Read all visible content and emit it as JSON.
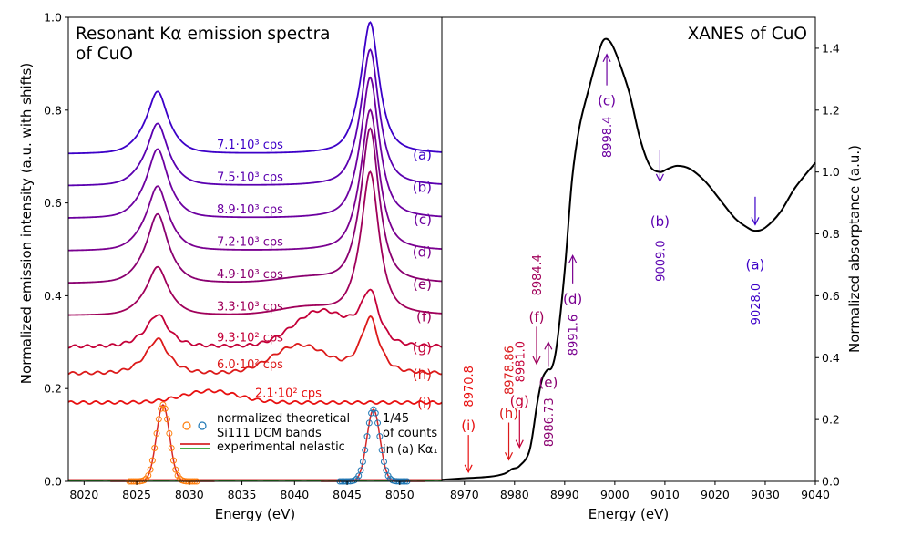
{
  "chart_data": [
    {
      "type": "line",
      "title": "Resonant Kα emission spectra\nof CuO",
      "xlabel": "Energy (eV)",
      "ylabel": "Normalized emission intensity (a.u. with shifts)",
      "xlim": [
        8018.5,
        8054.0
      ],
      "ylim": [
        0.0,
        1.0
      ],
      "xticks": [
        8020,
        8025,
        8030,
        8035,
        8040,
        8045,
        8050
      ],
      "yticks": [
        0.0,
        0.2,
        0.4,
        0.6,
        0.8,
        1.0
      ],
      "grid": false,
      "series": [
        {
          "name": "(a)",
          "color": "#3c00c8",
          "count_label": "7.1·10³ cps",
          "offset": 0.705,
          "p1": 0.135,
          "p2": 0.285,
          "sat": 0,
          "sat_pos": 8041
        },
        {
          "name": "(b)",
          "color": "#5a00b0",
          "count_label": "7.5·10³ cps",
          "offset": 0.636,
          "p1": 0.135,
          "p2": 0.295,
          "sat": 0,
          "sat_pos": 8041
        },
        {
          "name": "(c)",
          "color": "#6c00a0",
          "count_label": "8.9·10³ cps",
          "offset": 0.566,
          "p1": 0.15,
          "p2": 0.305,
          "sat": 0,
          "sat_pos": 8041
        },
        {
          "name": "(d)",
          "color": "#7a0090",
          "count_label": "7.2·10³ cps",
          "offset": 0.496,
          "p1": 0.14,
          "p2": 0.305,
          "sat": 0,
          "sat_pos": 8041
        },
        {
          "name": "(e)",
          "color": "#8a0070",
          "count_label": "4.9·10³ cps",
          "offset": 0.426,
          "p1": 0.15,
          "p2": 0.335,
          "sat": 0.01,
          "sat_pos": 8041
        },
        {
          "name": "(f)",
          "color": "#a0005a",
          "count_label": "3.3·10³ cps",
          "offset": 0.357,
          "p1": 0.105,
          "p2": 0.31,
          "sat": 0.015,
          "sat_pos": 8041
        },
        {
          "name": "(g)",
          "color": "#c40038",
          "count_label": "9.3·10²  cps",
          "offset": 0.29,
          "p1": 0.07,
          "p2": 0.11,
          "sat": 0.075,
          "sat_pos": 8042.5
        },
        {
          "name": "(h)",
          "color": "#dc1a1a",
          "count_label": "6.0·10²  cps",
          "offset": 0.232,
          "p1": 0.075,
          "p2": 0.12,
          "sat": 0.06,
          "sat_pos": 8040.5
        },
        {
          "name": "(i)",
          "color": "#e81010",
          "count_label": "2.1·10²  cps",
          "offset": 0.17,
          "p1": 0.0,
          "p2": 0.0,
          "sat": 0.025,
          "sat_pos": 8032
        }
      ],
      "theory_bands": [
        {
          "name": "normalized theoretical Si111 DCM bands (Kα2)",
          "color": "#ff7f0e",
          "center": 8027.5,
          "height": 0.165
        },
        {
          "name": "normalized theoretical Si111 DCM bands (Kα1)",
          "color": "#1f77b4",
          "center": 8047.5,
          "height": 0.155
        }
      ],
      "legend": {
        "position": "lower-center",
        "theory_label_line1": "normalized theoretical",
        "theory_label_line2": "Si111 DCM bands",
        "experimental_label": "experimental nelastic",
        "note_line1": "1/45",
        "note_line2": "of counts",
        "note_line3": "in (a) Kα₁"
      }
    },
    {
      "type": "line",
      "title": "XANES of CuO",
      "xlabel": "Energy (eV)",
      "ylabel": "Normalized absorptance (a.u.)",
      "xlim": [
        8965.5,
        9040.0
      ],
      "ylim": [
        0.0,
        1.5
      ],
      "xticks": [
        8970,
        8980,
        8990,
        9000,
        9010,
        9020,
        9030,
        9040
      ],
      "yticks": [
        0.0,
        0.2,
        0.4,
        0.6,
        0.8,
        1.0,
        1.2,
        1.4
      ],
      "grid": false,
      "series": [
        {
          "name": "XANES",
          "color": "#000000",
          "x": [
            8965.5,
            8970,
            8975,
            8978,
            8979.5,
            8981,
            8983,
            8984.5,
            8985.5,
            8986.5,
            8987.5,
            8988.5,
            8990,
            8991.5,
            8993,
            8995,
            8996.5,
            8997.5,
            8998.4,
            8999.5,
            9001,
            9003,
            9005,
            9007,
            9009,
            9010.5,
            9012.5,
            9015,
            9018,
            9021,
            9024,
            9026.5,
            9028,
            9030,
            9033,
            9036,
            9040
          ],
          "y": [
            0.005,
            0.01,
            0.015,
            0.025,
            0.04,
            0.05,
            0.1,
            0.25,
            0.33,
            0.36,
            0.37,
            0.45,
            0.68,
            0.98,
            1.15,
            1.28,
            1.37,
            1.42,
            1.43,
            1.41,
            1.35,
            1.25,
            1.11,
            1.02,
            1.0,
            1.01,
            1.02,
            1.01,
            0.97,
            0.91,
            0.85,
            0.82,
            0.81,
            0.82,
            0.87,
            0.95,
            1.03
          ]
        }
      ],
      "annotations": [
        {
          "label": "(a)",
          "energy": "9028.0",
          "x": 9028.0,
          "color": "#3c00c8",
          "direction": "up"
        },
        {
          "label": "(b)",
          "energy": "9009.0",
          "x": 9009.0,
          "color": "#5a00b0",
          "direction": "up"
        },
        {
          "label": "(c)",
          "energy": "8998.4",
          "x": 8998.4,
          "color": "#6c00a0",
          "direction": "up"
        },
        {
          "label": "(d)",
          "energy": "8991.6",
          "x": 8991.6,
          "color": "#7a0090",
          "direction": "up"
        },
        {
          "label": "(e)",
          "energy": "8986.73",
          "x": 8986.73,
          "color": "#8a0070",
          "direction": "up"
        },
        {
          "label": "(f)",
          "energy": "8984.4",
          "x": 8984.4,
          "color": "#a0005a",
          "direction": "down"
        },
        {
          "label": "(g)",
          "energy": "8981.0",
          "x": 8981.0,
          "color": "#c40038",
          "direction": "down"
        },
        {
          "label": "(h)",
          "energy": "8978.86",
          "x": 8978.86,
          "color": "#dc1a1a",
          "direction": "down"
        },
        {
          "label": "(i)",
          "energy": "8970.8",
          "x": 8970.8,
          "color": "#e81010",
          "direction": "down"
        }
      ]
    }
  ]
}
